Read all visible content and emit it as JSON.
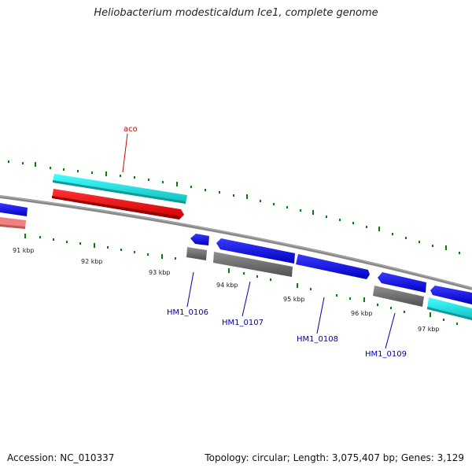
{
  "title": "Heliobacterium modesticaldum Ice1, complete genome",
  "footer": {
    "accession": "Accession: NC_010337",
    "summary": "Topology: circular; Length: 3,075,407 bp; Genes: 3,129"
  },
  "scale_labels": [
    "91 kbp",
    "92 kbp",
    "93 kbp",
    "94 kbp",
    "95 kbp",
    "96 kbp",
    "97 kbp"
  ],
  "gene_labels": [
    "aco",
    "HM1_0106",
    "HM1_0107",
    "HM1_0108",
    "HM1_0109"
  ],
  "colors": {
    "cds": "#1010ee",
    "gene_grey": "#707070",
    "cyan": "#22eeee",
    "red": "#ee1111",
    "pink": "#f08080",
    "backbone": "#888888",
    "tick": "#117711",
    "label_blue": "#0000aa",
    "label_red": "#cc0000"
  }
}
